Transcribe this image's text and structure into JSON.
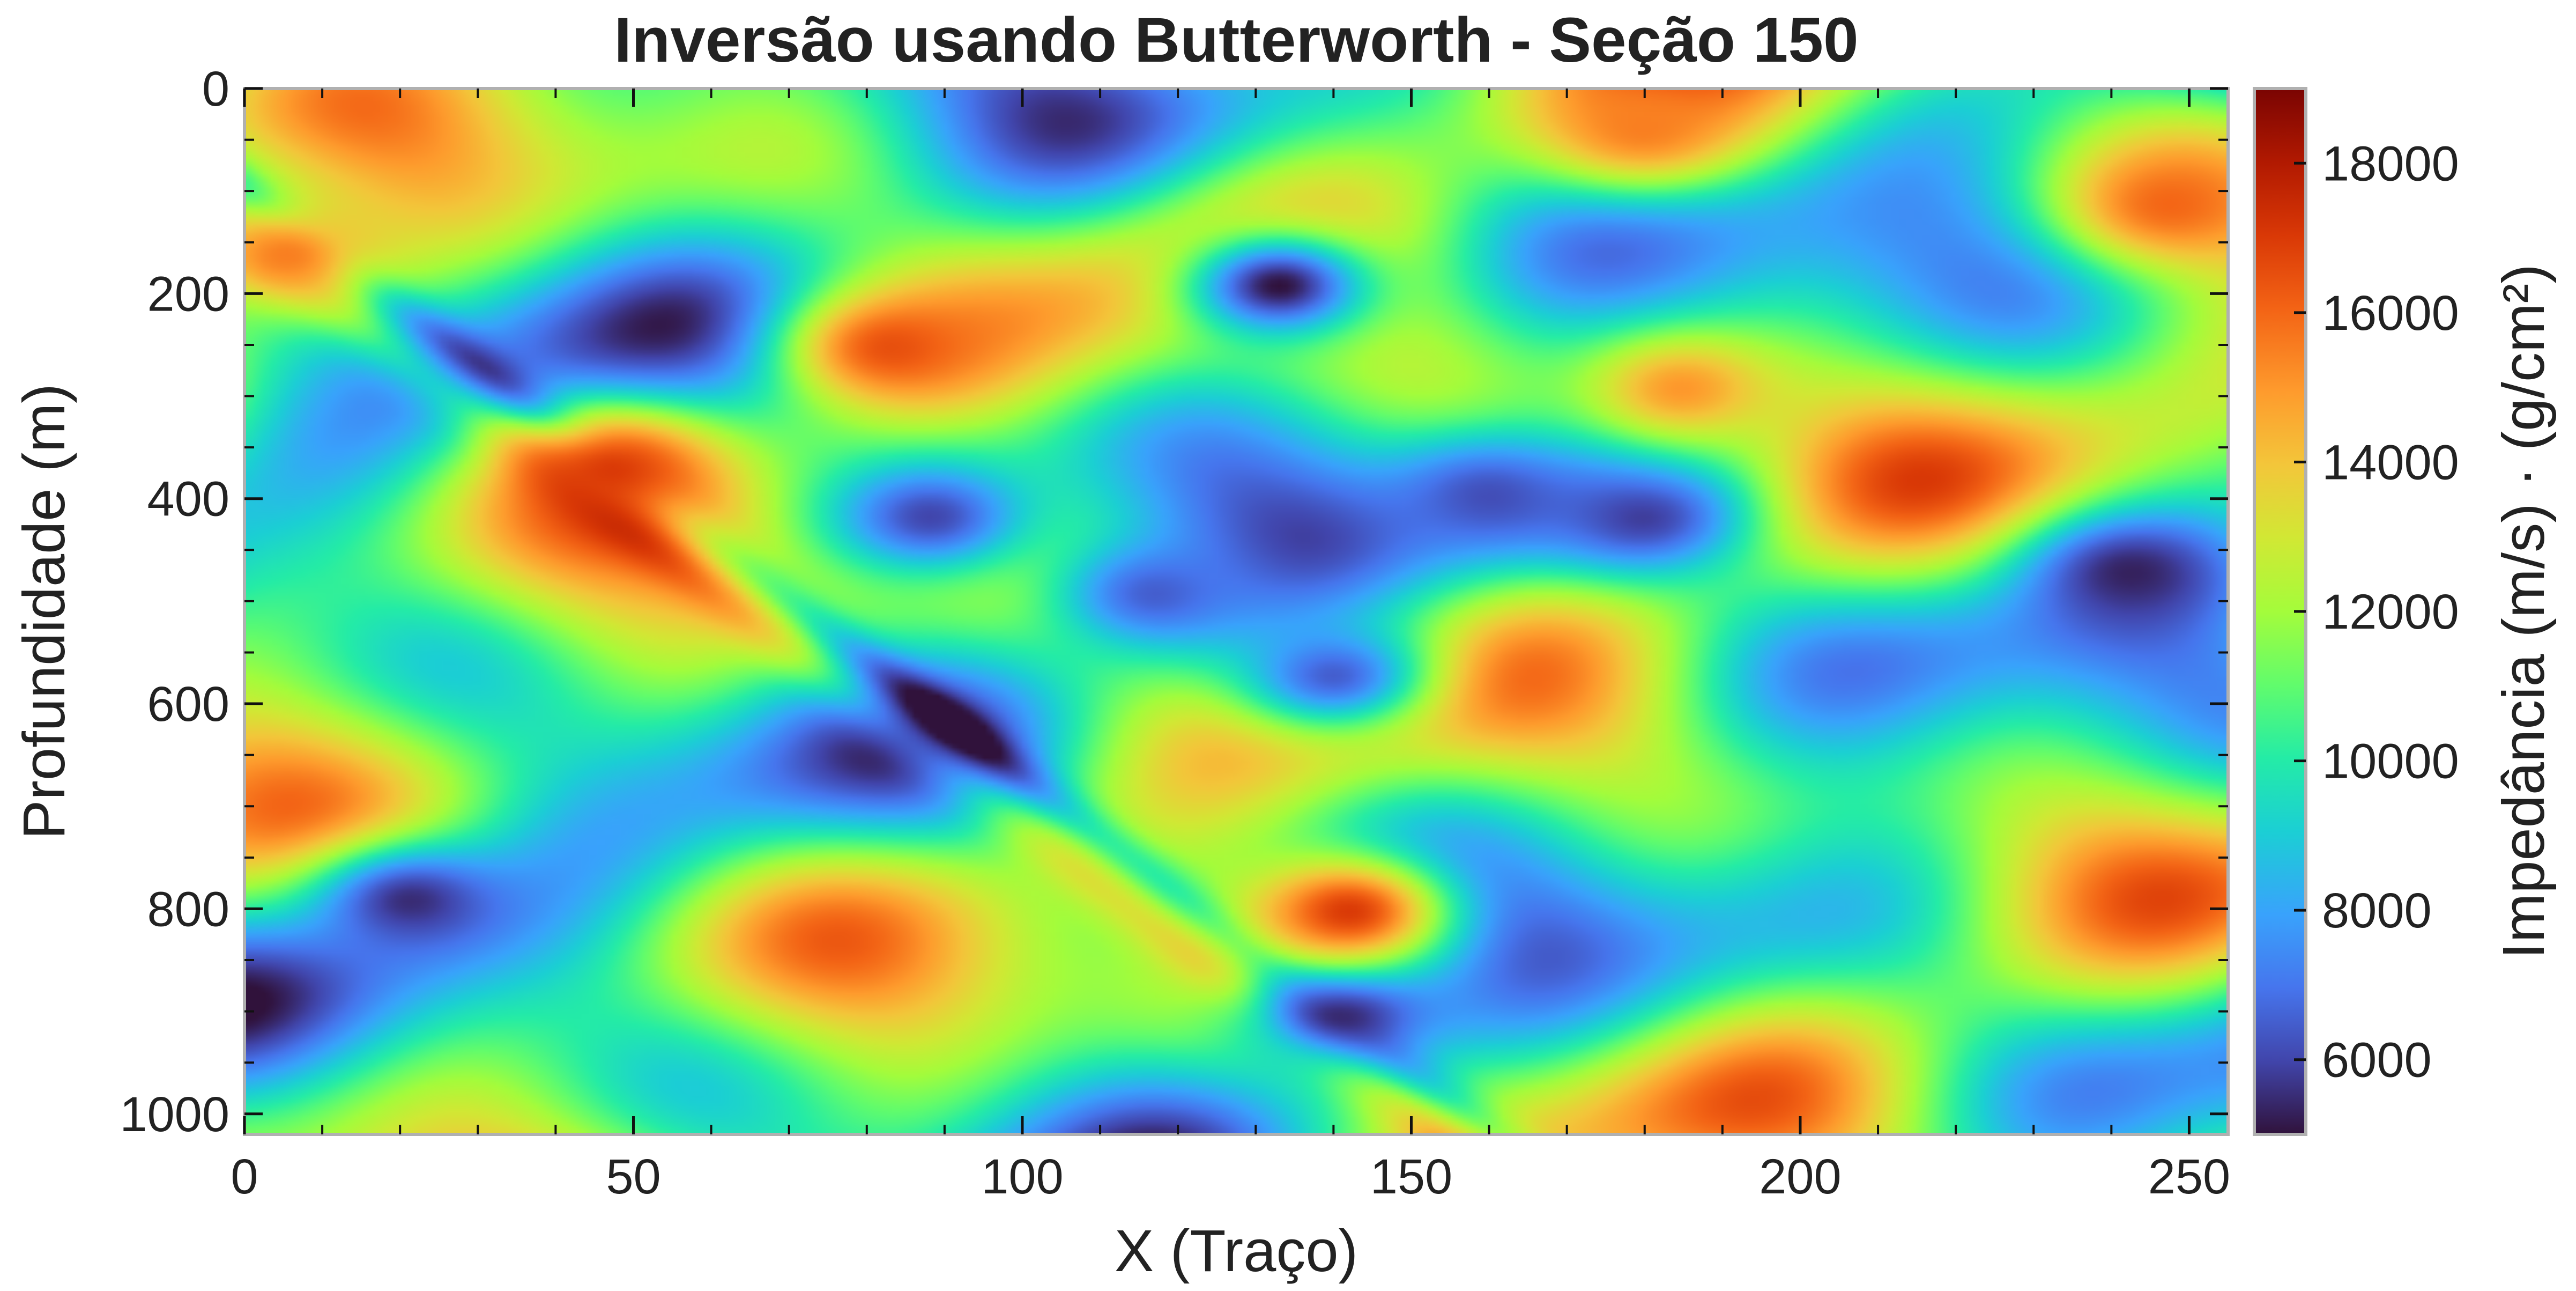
{
  "chart_data": {
    "type": "heatmap",
    "title": "Inversão usando Butterworth - Seção 150",
    "xlabel": "X (Traço)",
    "ylabel": "Profundidade (m)",
    "colorbar_label": "Impedância (m/s) · (g/cm²)",
    "xlim": [
      0,
      255
    ],
    "ylim": [
      1020,
      0
    ],
    "zlim": [
      5000,
      19000
    ],
    "x_ticks": [
      "0",
      "50",
      "100",
      "150",
      "200",
      "250"
    ],
    "y_ticks": [
      "0",
      "200",
      "400",
      "600",
      "800",
      "1000"
    ],
    "colorbar_ticks": [
      "6000",
      "8000",
      "10000",
      "12000",
      "14000",
      "16000",
      "18000"
    ],
    "colormap": "turbo",
    "grid": false,
    "features": [
      {
        "kind": "blob",
        "x": 133,
        "y": 190,
        "value": 5000
      },
      {
        "kind": "blob",
        "x": 141,
        "y": 895,
        "value": 5000
      },
      {
        "kind": "blob",
        "x": 21,
        "y": 790,
        "value": 5500
      },
      {
        "kind": "blob",
        "x": 88,
        "y": 415,
        "value": 6000
      },
      {
        "kind": "blob",
        "x": 160,
        "y": 395,
        "value": 6200
      },
      {
        "kind": "blob",
        "x": 180,
        "y": 415,
        "value": 5800
      },
      {
        "kind": "blob",
        "x": 117,
        "y": 490,
        "value": 6500
      },
      {
        "kind": "blob",
        "x": 140,
        "y": 570,
        "value": 6500
      },
      {
        "kind": "blob",
        "x": 243,
        "y": 470,
        "value": 5300
      },
      {
        "kind": "blob",
        "x": 83,
        "y": 250,
        "value": 16500
      },
      {
        "kind": "blob",
        "x": 47,
        "y": 370,
        "value": 17000
      },
      {
        "kind": "blob",
        "x": 5,
        "y": 160,
        "value": 15500
      },
      {
        "kind": "blob",
        "x": 248,
        "y": 110,
        "value": 16000
      },
      {
        "kind": "blob",
        "x": 185,
        "y": 290,
        "value": 15000
      },
      {
        "kind": "blob",
        "x": 180,
        "y": 35,
        "value": 15500
      },
      {
        "kind": "blob",
        "x": 142,
        "y": 800,
        "value": 17000
      }
    ]
  }
}
